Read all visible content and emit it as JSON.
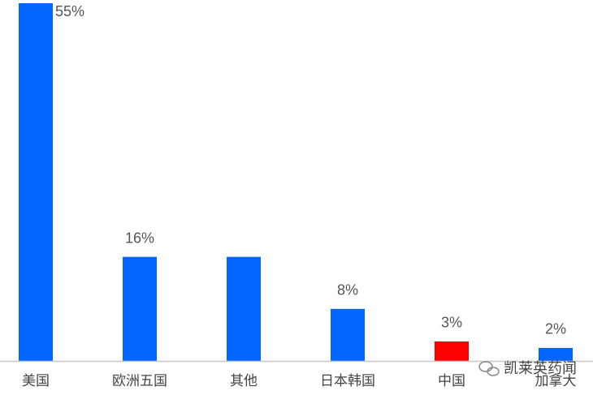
{
  "chart_data": {
    "type": "bar",
    "categories": [
      "美国",
      "欧洲五国",
      "其他",
      "日本韩国",
      "中国",
      "加拿大"
    ],
    "values": [
      55,
      16,
      16,
      8,
      3,
      2
    ],
    "value_labels": [
      "55%",
      "16%",
      null,
      "8%",
      "3%",
      "2%"
    ],
    "colors": [
      "#0066ff",
      "#0066ff",
      "#0066ff",
      "#0066ff",
      "#ff0000",
      "#0066ff"
    ],
    "ylim": [
      0,
      55
    ],
    "watermark": "凯莱英药闻"
  }
}
